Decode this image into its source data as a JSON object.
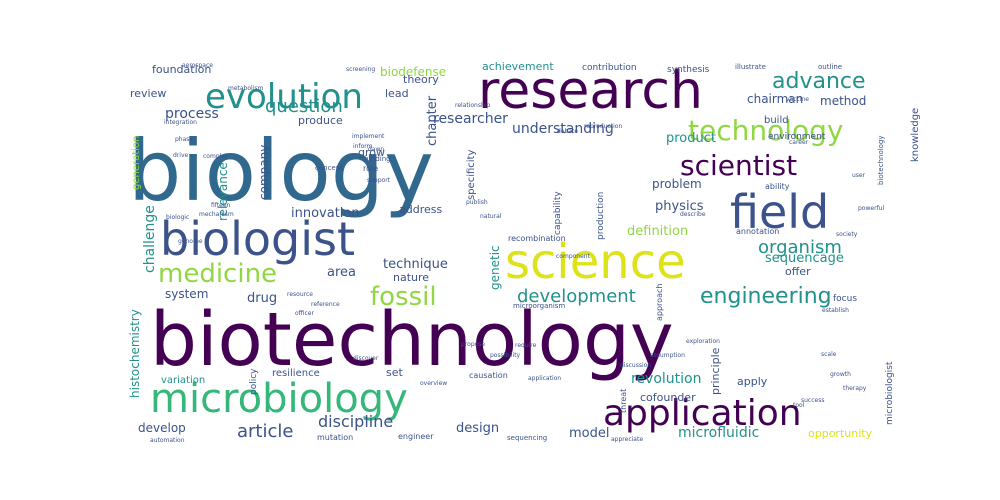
{
  "palette": {
    "dark_purple": "#440154",
    "indigo": "#3b528b",
    "steel_blue": "#31688e",
    "teal": "#21918c",
    "sea_green": "#35b779",
    "lime": "#90d743",
    "yellow": "#dde318"
  },
  "words": [
    {
      "text": "biotechnology",
      "color": "dark_purple",
      "orientation": "horizontal"
    },
    {
      "text": "biology",
      "color": "steel_blue",
      "orientation": "horizontal"
    },
    {
      "text": "research",
      "color": "dark_purple",
      "orientation": "horizontal"
    },
    {
      "text": "science",
      "color": "yellow",
      "orientation": "horizontal"
    },
    {
      "text": "biologist",
      "color": "indigo",
      "orientation": "horizontal"
    },
    {
      "text": "microbiology",
      "color": "sea_green",
      "orientation": "horizontal"
    },
    {
      "text": "application",
      "color": "dark_purple",
      "orientation": "horizontal"
    },
    {
      "text": "field",
      "color": "indigo",
      "orientation": "horizontal"
    },
    {
      "text": "evolution",
      "color": "teal",
      "orientation": "horizontal"
    },
    {
      "text": "technology",
      "color": "lime",
      "orientation": "horizontal"
    },
    {
      "text": "scientist",
      "color": "dark_purple",
      "orientation": "horizontal"
    },
    {
      "text": "medicine",
      "color": "lime",
      "orientation": "horizontal"
    },
    {
      "text": "engineering",
      "color": "teal",
      "orientation": "horizontal"
    },
    {
      "text": "advance",
      "color": "teal",
      "orientation": "horizontal"
    },
    {
      "text": "fossil",
      "color": "lime",
      "orientation": "horizontal"
    },
    {
      "text": "question",
      "color": "teal",
      "orientation": "horizontal"
    },
    {
      "text": "development",
      "color": "teal",
      "orientation": "horizontal"
    },
    {
      "text": "organism",
      "color": "teal",
      "orientation": "horizontal"
    },
    {
      "text": "article",
      "color": "indigo",
      "orientation": "horizontal"
    },
    {
      "text": "discipline",
      "color": "indigo",
      "orientation": "horizontal"
    },
    {
      "text": "microfluidic",
      "color": "teal",
      "orientation": "horizontal"
    },
    {
      "text": "understanding",
      "color": "indigo",
      "orientation": "horizontal"
    },
    {
      "text": "researcher",
      "color": "indigo",
      "orientation": "horizontal"
    },
    {
      "text": "process",
      "color": "indigo",
      "orientation": "horizontal"
    },
    {
      "text": "innovation",
      "color": "indigo",
      "orientation": "horizontal"
    },
    {
      "text": "physics",
      "color": "indigo",
      "orientation": "horizontal"
    },
    {
      "text": "definition",
      "color": "lime",
      "orientation": "horizontal"
    },
    {
      "text": "sequencage",
      "color": "teal",
      "orientation": "horizontal"
    },
    {
      "text": "technique",
      "color": "indigo",
      "orientation": "horizontal"
    },
    {
      "text": "revolution",
      "color": "teal",
      "orientation": "horizontal"
    },
    {
      "text": "design",
      "color": "indigo",
      "orientation": "horizontal"
    },
    {
      "text": "model",
      "color": "indigo",
      "orientation": "horizontal"
    },
    {
      "text": "opportunity",
      "color": "yellow",
      "orientation": "horizontal"
    },
    {
      "text": "method",
      "color": "indigo",
      "orientation": "horizontal"
    },
    {
      "text": "chairman",
      "color": "indigo",
      "orientation": "horizontal"
    },
    {
      "text": "product",
      "color": "teal",
      "orientation": "horizontal"
    },
    {
      "text": "problem",
      "color": "indigo",
      "orientation": "horizontal"
    },
    {
      "text": "biodefense",
      "color": "lime",
      "orientation": "horizontal"
    },
    {
      "text": "area",
      "color": "indigo",
      "orientation": "horizontal"
    },
    {
      "text": "drug",
      "color": "indigo",
      "orientation": "horizontal"
    },
    {
      "text": "system",
      "color": "indigo",
      "orientation": "horizontal"
    },
    {
      "text": "develop",
      "color": "indigo",
      "orientation": "horizontal"
    },
    {
      "text": "review",
      "color": "indigo",
      "orientation": "horizontal"
    },
    {
      "text": "foundation",
      "color": "indigo",
      "orientation": "horizontal"
    },
    {
      "text": "achievement",
      "color": "teal",
      "orientation": "horizontal"
    },
    {
      "text": "theory",
      "color": "indigo",
      "orientation": "horizontal"
    },
    {
      "text": "lead",
      "color": "indigo",
      "orientation": "horizontal"
    },
    {
      "text": "produce",
      "color": "indigo",
      "orientation": "horizontal"
    },
    {
      "text": "grow",
      "color": "indigo",
      "orientation": "horizontal"
    },
    {
      "text": "address",
      "color": "indigo",
      "orientation": "horizontal"
    },
    {
      "text": "nature",
      "color": "indigo",
      "orientation": "horizontal"
    },
    {
      "text": "offer",
      "color": "indigo",
      "orientation": "horizontal"
    },
    {
      "text": "apply",
      "color": "indigo",
      "orientation": "horizontal"
    },
    {
      "text": "cofounder",
      "color": "indigo",
      "orientation": "horizontal"
    },
    {
      "text": "set",
      "color": "indigo",
      "orientation": "horizontal"
    },
    {
      "text": "variation",
      "color": "teal",
      "orientation": "horizontal"
    },
    {
      "text": "resilience",
      "color": "indigo",
      "orientation": "horizontal"
    },
    {
      "text": "build",
      "color": "indigo",
      "orientation": "horizontal"
    },
    {
      "text": "contribution",
      "color": "indigo",
      "orientation": "horizontal"
    },
    {
      "text": "synthesis",
      "color": "indigo",
      "orientation": "horizontal"
    },
    {
      "text": "environment",
      "color": "indigo",
      "orientation": "horizontal"
    },
    {
      "text": "ability",
      "color": "indigo",
      "orientation": "horizontal"
    },
    {
      "text": "annotation",
      "color": "indigo",
      "orientation": "horizontal"
    },
    {
      "text": "focus",
      "color": "indigo",
      "orientation": "horizontal"
    },
    {
      "text": "role",
      "color": "indigo",
      "orientation": "horizontal"
    },
    {
      "text": "concept",
      "color": "indigo",
      "orientation": "horizontal"
    },
    {
      "text": "funding",
      "color": "indigo",
      "orientation": "horizontal"
    },
    {
      "text": "recombination",
      "color": "indigo",
      "orientation": "horizontal"
    },
    {
      "text": "mutation",
      "color": "indigo",
      "orientation": "horizontal"
    },
    {
      "text": "engineer",
      "color": "indigo",
      "orientation": "horizontal"
    },
    {
      "text": "sequencing",
      "color": "indigo",
      "orientation": "horizontal"
    },
    {
      "text": "automation",
      "color": "indigo",
      "orientation": "horizontal"
    },
    {
      "text": "appreciate",
      "color": "indigo",
      "orientation": "horizontal"
    },
    {
      "text": "illustrate",
      "color": "indigo",
      "orientation": "horizontal"
    },
    {
      "text": "outline",
      "color": "indigo",
      "orientation": "horizontal"
    },
    {
      "text": "screening",
      "color": "indigo",
      "orientation": "horizontal"
    },
    {
      "text": "integration",
      "color": "indigo",
      "orientation": "horizontal"
    },
    {
      "text": "relationship",
      "color": "indigo",
      "orientation": "horizontal"
    },
    {
      "text": "implement",
      "color": "indigo",
      "orientation": "horizontal"
    },
    {
      "text": "society",
      "color": "indigo",
      "orientation": "horizontal"
    },
    {
      "text": "establish",
      "color": "indigo",
      "orientation": "horizontal"
    },
    {
      "text": "scale",
      "color": "indigo",
      "orientation": "horizontal"
    },
    {
      "text": "company",
      "color": "indigo",
      "orientation": "vertical"
    },
    {
      "text": "chapter",
      "color": "indigo",
      "orientation": "vertical"
    },
    {
      "text": "relevance",
      "color": "teal",
      "orientation": "vertical"
    },
    {
      "text": "challenge",
      "color": "teal",
      "orientation": "vertical"
    },
    {
      "text": "genetic",
      "color": "teal",
      "orientation": "vertical"
    },
    {
      "text": "histochemistry",
      "color": "teal",
      "orientation": "vertical"
    },
    {
      "text": "generation",
      "color": "lime",
      "orientation": "vertical"
    },
    {
      "text": "specificity",
      "color": "indigo",
      "orientation": "vertical"
    },
    {
      "text": "knowledge",
      "color": "indigo",
      "orientation": "vertical"
    },
    {
      "text": "principle",
      "color": "indigo",
      "orientation": "vertical"
    },
    {
      "text": "microbiologist",
      "color": "indigo",
      "orientation": "vertical"
    },
    {
      "text": "policy",
      "color": "indigo",
      "orientation": "vertical"
    },
    {
      "text": "production",
      "color": "indigo",
      "orientation": "vertical"
    },
    {
      "text": "capability",
      "color": "indigo",
      "orientation": "vertical"
    },
    {
      "text": "threat",
      "color": "indigo",
      "orientation": "vertical"
    },
    {
      "text": "approach",
      "color": "indigo",
      "orientation": "vertical"
    },
    {
      "text": "biotechnology",
      "color": "indigo",
      "orientation": "vertical"
    },
    {
      "text": "publish",
      "color": "indigo",
      "orientation": "horizontal"
    },
    {
      "text": "natural",
      "color": "indigo",
      "orientation": "horizontal"
    },
    {
      "text": "microorganism",
      "color": "indigo",
      "orientation": "horizontal"
    },
    {
      "text": "causation",
      "color": "indigo",
      "orientation": "horizontal"
    },
    {
      "text": "overview",
      "color": "indigo",
      "orientation": "horizontal"
    },
    {
      "text": "application",
      "color": "indigo",
      "orientation": "horizontal"
    },
    {
      "text": "drive",
      "color": "indigo",
      "orientation": "horizontal"
    },
    {
      "text": "mechanism",
      "color": "indigo",
      "orientation": "horizontal"
    },
    {
      "text": "biologic",
      "color": "indigo",
      "orientation": "horizontal"
    },
    {
      "text": "complex",
      "color": "indigo",
      "orientation": "horizontal"
    },
    {
      "text": "support",
      "color": "indigo",
      "orientation": "horizontal"
    },
    {
      "text": "describe",
      "color": "indigo",
      "orientation": "horizontal"
    },
    {
      "text": "reproduction",
      "color": "indigo",
      "orientation": "horizontal"
    },
    {
      "text": "require",
      "color": "indigo",
      "orientation": "horizontal"
    },
    {
      "text": "component",
      "color": "indigo",
      "orientation": "horizontal"
    },
    {
      "text": "propose",
      "color": "indigo",
      "orientation": "horizontal"
    },
    {
      "text": "possibility",
      "color": "indigo",
      "orientation": "horizontal"
    },
    {
      "text": "assumption",
      "color": "indigo",
      "orientation": "horizontal"
    },
    {
      "text": "exploration",
      "color": "indigo",
      "orientation": "horizontal"
    },
    {
      "text": "discussion",
      "color": "indigo",
      "orientation": "horizontal"
    },
    {
      "text": "dawn",
      "color": "indigo",
      "orientation": "horizontal"
    },
    {
      "text": "inform",
      "color": "indigo",
      "orientation": "horizontal"
    },
    {
      "text": "reference",
      "color": "indigo",
      "orientation": "horizontal"
    },
    {
      "text": "fifteen",
      "color": "indigo",
      "orientation": "horizontal"
    },
    {
      "text": "discover",
      "color": "indigo",
      "orientation": "horizontal"
    },
    {
      "text": "officer",
      "color": "indigo",
      "orientation": "horizontal"
    },
    {
      "text": "phase",
      "color": "indigo",
      "orientation": "horizontal"
    },
    {
      "text": "career",
      "color": "indigo",
      "orientation": "horizontal"
    },
    {
      "text": "user",
      "color": "indigo",
      "orientation": "horizontal"
    },
    {
      "text": "powerful",
      "color": "indigo",
      "orientation": "horizontal"
    },
    {
      "text": "resource",
      "color": "indigo",
      "orientation": "horizontal"
    },
    {
      "text": "success",
      "color": "indigo",
      "orientation": "horizontal"
    },
    {
      "text": "debate",
      "color": "indigo",
      "orientation": "horizontal"
    },
    {
      "text": "genome",
      "color": "indigo",
      "orientation": "horizontal"
    },
    {
      "text": "aerospace",
      "color": "indigo",
      "orientation": "horizontal"
    },
    {
      "text": "metabolism",
      "color": "indigo",
      "orientation": "horizontal"
    },
    {
      "text": "vaccine",
      "color": "indigo",
      "orientation": "horizontal"
    },
    {
      "text": "growth",
      "color": "indigo",
      "orientation": "horizontal"
    },
    {
      "text": "therapy",
      "color": "indigo",
      "orientation": "horizontal"
    },
    {
      "text": "tool",
      "color": "indigo",
      "orientation": "horizontal"
    }
  ]
}
